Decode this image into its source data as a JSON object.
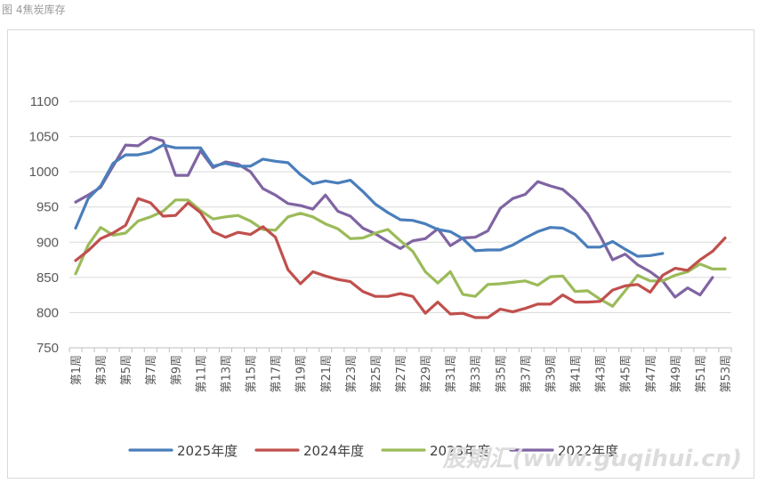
{
  "caption": "图 4焦炭库存",
  "watermark": "股期汇(www.guqihui.cn)",
  "chart_data": {
    "type": "line",
    "title": "",
    "xlabel": "",
    "ylabel": "",
    "ylim": [
      750,
      1100
    ],
    "yticks": [
      750,
      800,
      850,
      900,
      950,
      1000,
      1050,
      1100
    ],
    "grid": true,
    "legend_position": "bottom",
    "x_tick_labels": [
      "第1周",
      "第3周",
      "第5周",
      "第7周",
      "第9周",
      "第11周",
      "第13周",
      "第15周",
      "第17周",
      "第19周",
      "第21周",
      "第23周",
      "第25周",
      "第27周",
      "第29周",
      "第31周",
      "第33周",
      "第35周",
      "第37周",
      "第39周",
      "第41周",
      "第43周",
      "第45周",
      "第47周",
      "第49周",
      "第51周",
      "第53周"
    ],
    "series": [
      {
        "name": "2025年度",
        "color": "#4a7ebb",
        "values": [
          920,
          962,
          980,
          1012,
          1024,
          1024,
          1028,
          1038,
          1034,
          1034,
          1034,
          1008,
          1012,
          1008,
          1008,
          1018,
          1015,
          1013,
          996,
          983,
          987,
          984,
          988,
          972,
          954,
          942,
          932,
          931,
          926,
          918,
          915,
          905,
          888,
          889,
          889,
          896,
          906,
          915,
          921,
          920,
          911,
          893,
          893,
          901,
          890,
          880,
          881,
          884
        ]
      },
      {
        "name": "2024年度",
        "color": "#c0504d",
        "values": [
          874,
          888,
          905,
          913,
          924,
          962,
          956,
          937,
          938,
          956,
          942,
          915,
          907,
          914,
          911,
          922,
          907,
          861,
          841,
          858,
          852,
          847,
          844,
          830,
          823,
          823,
          827,
          823,
          799,
          815,
          798,
          799,
          793,
          793,
          805,
          801,
          806,
          812,
          812,
          825,
          815,
          815,
          816,
          832,
          838,
          840,
          829,
          853,
          863,
          860,
          875,
          887,
          906
        ]
      },
      {
        "name": "2023年度",
        "color": "#9bbb59",
        "values": [
          855,
          896,
          921,
          910,
          913,
          930,
          936,
          944,
          960,
          960,
          945,
          933,
          936,
          938,
          930,
          918,
          917,
          936,
          941,
          936,
          926,
          919,
          905,
          906,
          913,
          918,
          902,
          887,
          858,
          842,
          858,
          826,
          823,
          840,
          841,
          843,
          845,
          839,
          851,
          852,
          830,
          831,
          819,
          809,
          831,
          853,
          845,
          845,
          853,
          858,
          869,
          862,
          862
        ]
      },
      {
        "name": "2022年度",
        "color": "#8064a2",
        "values": [
          957,
          967,
          978,
          1008,
          1038,
          1037,
          1049,
          1044,
          995,
          995,
          1030,
          1006,
          1014,
          1011,
          1000,
          976,
          967,
          955,
          952,
          947,
          967,
          944,
          937,
          920,
          912,
          901,
          891,
          902,
          905,
          919,
          895,
          906,
          907,
          916,
          948,
          962,
          968,
          986,
          980,
          975,
          960,
          940,
          909,
          875,
          883,
          868,
          858,
          845,
          822,
          835,
          825,
          850
        ]
      }
    ]
  }
}
